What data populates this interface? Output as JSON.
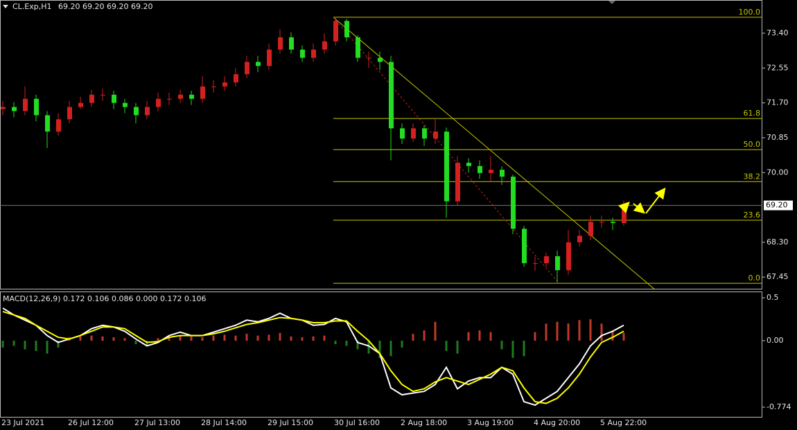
{
  "chart_data": [
    {
      "type": "candlestick",
      "title": "CL.Exp,H1",
      "ohlc_text": "69.20 69.20 69.20 69.20",
      "categories": [
        "23 Jul 2021",
        null,
        null,
        null,
        null,
        null,
        "26 Jul 12:00",
        null,
        null,
        null,
        null,
        null,
        "27 Jul 13:00",
        null,
        null,
        null,
        null,
        null,
        "28 Jul 14:00",
        null,
        null,
        null,
        null,
        null,
        "29 Jul 15:00",
        null,
        null,
        null,
        null,
        null,
        "30 Jul 16:00",
        null,
        null,
        null,
        null,
        null,
        "2 Aug 18:00",
        null,
        null,
        null,
        null,
        null,
        "3 Aug 19:00",
        null,
        null,
        null,
        null,
        null,
        "4 Aug 20:00",
        null,
        null,
        null,
        null,
        null,
        "5 Aug 22:00",
        null,
        null
      ],
      "opens": [
        71.55,
        71.6,
        71.5,
        71.8,
        71.4,
        71.0,
        71.3,
        71.6,
        71.7,
        71.9,
        71.9,
        71.7,
        71.6,
        71.4,
        71.6,
        71.8,
        71.8,
        71.9,
        71.8,
        72.1,
        72.1,
        72.2,
        72.4,
        72.7,
        72.6,
        73.0,
        73.3,
        73.0,
        72.8,
        73.0,
        73.2,
        73.7,
        73.3,
        72.8,
        72.8,
        72.7,
        71.08,
        70.83,
        71.08,
        70.83,
        71.0,
        69.3,
        70.24,
        70.16,
        69.99,
        70.07,
        69.9,
        68.63,
        67.79,
        67.79,
        67.96,
        67.62,
        68.3,
        68.46,
        68.8,
        68.8,
        68.77
      ],
      "highs": [
        71.75,
        71.72,
        72.1,
        71.9,
        71.5,
        71.45,
        71.75,
        71.85,
        72.02,
        72.05,
        72.0,
        71.8,
        71.7,
        71.75,
        71.95,
        71.95,
        72.02,
        72.0,
        72.35,
        72.25,
        72.35,
        72.55,
        72.85,
        72.85,
        73.15,
        73.5,
        73.42,
        73.1,
        73.15,
        73.4,
        73.79,
        73.75,
        73.35,
        72.95,
        72.95,
        72.85,
        71.2,
        71.2,
        71.15,
        71.32,
        71.1,
        70.4,
        70.35,
        70.3,
        70.4,
        70.15,
        69.95,
        68.7,
        67.95,
        68.05,
        68.1,
        68.6,
        68.6,
        68.95,
        68.95,
        68.9,
        69.32
      ],
      "lows": [
        71.4,
        71.35,
        71.4,
        71.25,
        70.6,
        70.9,
        71.2,
        71.55,
        71.6,
        71.75,
        71.55,
        71.45,
        71.2,
        71.3,
        71.5,
        71.65,
        71.7,
        71.65,
        71.7,
        71.95,
        72.0,
        72.1,
        72.3,
        72.45,
        72.5,
        72.9,
        72.9,
        72.7,
        72.7,
        72.9,
        73.1,
        73.2,
        72.7,
        72.55,
        72.5,
        70.3,
        70.7,
        70.75,
        70.65,
        70.7,
        68.9,
        69.2,
        70.0,
        69.85,
        69.8,
        69.7,
        68.5,
        67.7,
        67.6,
        67.7,
        67.32,
        67.5,
        68.2,
        68.35,
        68.65,
        68.6,
        68.7
      ],
      "closes": [
        71.6,
        71.5,
        71.8,
        71.4,
        71.0,
        71.3,
        71.6,
        71.7,
        71.9,
        71.9,
        71.7,
        71.6,
        71.4,
        71.6,
        71.8,
        71.8,
        71.9,
        71.8,
        72.1,
        72.1,
        72.2,
        72.4,
        72.7,
        72.6,
        73.0,
        73.3,
        73.0,
        72.8,
        73.0,
        73.2,
        73.7,
        73.3,
        72.8,
        72.8,
        72.7,
        71.08,
        70.83,
        71.08,
        70.83,
        71.0,
        69.3,
        70.24,
        70.16,
        69.99,
        70.07,
        69.9,
        68.63,
        67.79,
        67.79,
        67.96,
        67.62,
        68.3,
        68.46,
        68.8,
        68.8,
        68.77,
        69.2
      ],
      "up_color": "#d42020",
      "down_color": "#22dd22",
      "ylim": [
        67.15,
        74.21
      ],
      "yticks": [
        {
          "value": 73.4,
          "label": "73.40"
        },
        {
          "value": 72.55,
          "label": "72.55"
        },
        {
          "value": 71.7,
          "label": "71.70"
        },
        {
          "value": 70.85,
          "label": "70.85"
        },
        {
          "value": 70,
          "label": "70.00"
        },
        {
          "value": 68.3,
          "label": "68.30"
        },
        {
          "value": 67.45,
          "label": "67.45"
        }
      ],
      "current_price": {
        "value": 69.2,
        "label": "69.20"
      },
      "fibonacci": {
        "levels": [
          "100.0",
          "61.8",
          "50.0",
          "38.2",
          "23.6",
          "0.0"
        ],
        "prices": [
          73.79,
          71.32,
          70.56,
          69.78,
          68.84,
          67.3
        ],
        "x_start": 29.8,
        "color": "#c8c800"
      },
      "trendline": {
        "x": [
          29.8,
          58.8
        ],
        "y": [
          73.79,
          67.15
        ],
        "color": "#c8c800"
      },
      "dashed_line": {
        "x": [
          29.8,
          50.1
        ],
        "y": [
          73.79,
          67.32
        ],
        "color": "#cc2222"
      }
    },
    {
      "type": "macd",
      "title": "MACD(12,26,9) 0.172 0.106 0.086 0.000 0.172 0.106",
      "histogram": [
        -0.08,
        -0.06,
        -0.1,
        -0.12,
        -0.15,
        -0.08,
        0.04,
        0.05,
        0.06,
        0.05,
        0.04,
        0.03,
        -0.04,
        -0.05,
        0.03,
        0.05,
        0.06,
        0.05,
        0.04,
        0.06,
        0.07,
        0.06,
        0.08,
        0.06,
        0.07,
        0.09,
        0.05,
        0.04,
        0.05,
        0.06,
        -0.04,
        -0.06,
        -0.1,
        -0.15,
        -0.2,
        -0.18,
        -0.08,
        0.08,
        0.12,
        0.22,
        -0.12,
        -0.15,
        0.1,
        0.12,
        0.1,
        -0.1,
        -0.2,
        -0.18,
        0.1,
        0.2,
        0.22,
        0.2,
        0.24,
        0.25,
        0.2,
        0.12,
        0.09
      ],
      "up_color": "#c0392b",
      "down_color": "#1e7b1e",
      "series": [
        {
          "color": "#ffffff",
          "values": [
            0.38,
            0.3,
            0.24,
            0.18,
            0.06,
            -0.02,
            0.02,
            0.06,
            0.14,
            0.18,
            0.16,
            0.11,
            0.02,
            -0.06,
            -0.02,
            0.06,
            0.1,
            0.06,
            0.06,
            0.1,
            0.14,
            0.18,
            0.24,
            0.22,
            0.26,
            0.32,
            0.26,
            0.24,
            0.18,
            0.19,
            0.26,
            0.22,
            -0.02,
            -0.06,
            -0.15,
            -0.55,
            -0.63,
            -0.61,
            -0.59,
            -0.51,
            -0.31,
            -0.56,
            -0.47,
            -0.43,
            -0.43,
            -0.31,
            -0.39,
            -0.71,
            -0.75,
            -0.67,
            -0.59,
            -0.43,
            -0.27,
            -0.06,
            0.06,
            0.11,
            0.18
          ]
        },
        {
          "color": "#ffff00",
          "values": [
            0.34,
            0.3,
            0.26,
            0.18,
            0.11,
            0.04,
            0.02,
            0.06,
            0.11,
            0.16,
            0.16,
            0.14,
            0.06,
            -0.02,
            -0.01,
            0.04,
            0.06,
            0.06,
            0.06,
            0.08,
            0.11,
            0.15,
            0.19,
            0.21,
            0.24,
            0.27,
            0.26,
            0.24,
            0.21,
            0.21,
            0.23,
            0.23,
            0.11,
            0.0,
            -0.15,
            -0.35,
            -0.51,
            -0.59,
            -0.56,
            -0.48,
            -0.43,
            -0.47,
            -0.51,
            -0.45,
            -0.39,
            -0.31,
            -0.35,
            -0.55,
            -0.71,
            -0.73,
            -0.67,
            -0.55,
            -0.39,
            -0.19,
            -0.02,
            0.04,
            0.11
          ]
        }
      ],
      "ylim": [
        -0.895,
        0.565
      ],
      "yticks": [
        0.5,
        {
          "value": 0,
          "label": "0.00"
        },
        -0.774
      ]
    }
  ]
}
